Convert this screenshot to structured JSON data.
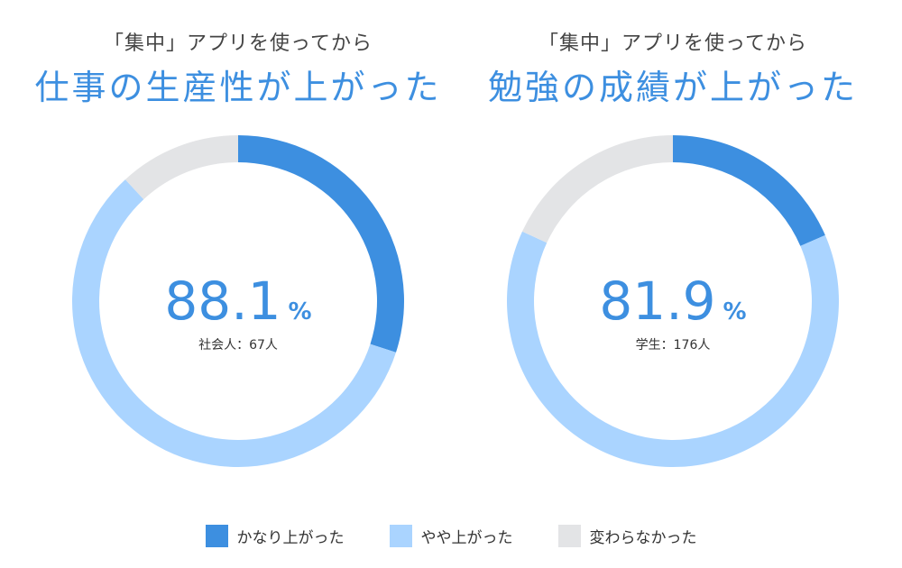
{
  "colors": {
    "accent": "#3d8fe0",
    "significant": "#3d8fe0",
    "slight": "#aad4ff",
    "unchanged": "#e3e4e6"
  },
  "legend": [
    {
      "label": "かなり上がった",
      "color": "#3d8fe0"
    },
    {
      "label": "やや上がった",
      "color": "#aad4ff"
    },
    {
      "label": "変わらなかった",
      "color": "#e3e4e6"
    }
  ],
  "chart_data": [
    {
      "type": "pie",
      "subtitle": "「集中」アプリを使ってから",
      "title": "仕事の生産性が上がった",
      "center_value": "88.1",
      "center_unit": "%",
      "sample_label": "社会人：67人",
      "slices": [
        {
          "label": "かなり上がった",
          "value": 30.0
        },
        {
          "label": "やや上がった",
          "value": 58.1
        },
        {
          "label": "変わらなかった",
          "value": 11.9
        }
      ]
    },
    {
      "type": "pie",
      "subtitle": "「集中」アプリを使ってから",
      "title": "勉強の成績が上がった",
      "center_value": "81.9",
      "center_unit": "%",
      "sample_label": "学生：176人",
      "slices": [
        {
          "label": "かなり上がった",
          "value": 18.5
        },
        {
          "label": "やや上がった",
          "value": 63.4
        },
        {
          "label": "変わらなかった",
          "value": 18.1
        }
      ]
    }
  ]
}
